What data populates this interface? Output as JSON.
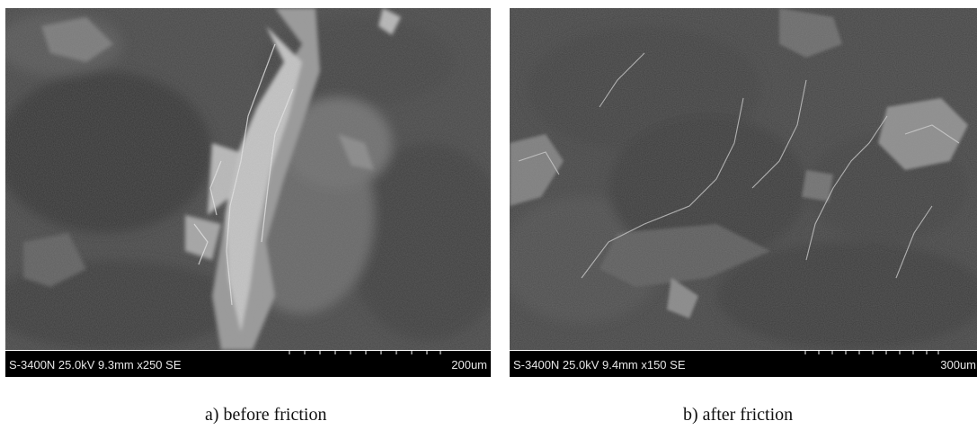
{
  "panels": [
    {
      "info": "S-3400N 25.0kV 9.3mm x250 SE",
      "scale": "200um",
      "caption": "a) before friction"
    },
    {
      "info": "S-3400N 25.0kV 9.4mm x150 SE",
      "scale": "300um",
      "caption": "b) after friction"
    }
  ],
  "colors": {
    "background": "#ffffff",
    "sem_base": "#4a4a4a",
    "sem_dark": "#2e2e2e",
    "sem_bright": "#d8d8d8",
    "info_bar": "#000000"
  }
}
